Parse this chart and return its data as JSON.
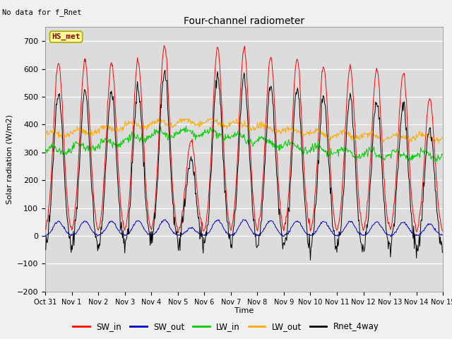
{
  "title": "Four-channel radiometer",
  "subtitle": "No data for f_Rnet",
  "ylabel": "Solar radiation (W/m2)",
  "xlabel": "Time",
  "station_label": "HS_met",
  "ylim": [
    -200,
    750
  ],
  "yticks": [
    -200,
    -100,
    0,
    100,
    200,
    300,
    400,
    500,
    600,
    700
  ],
  "xtick_labels": [
    "Oct 31",
    "Nov 1",
    "Nov 2",
    "Nov 3",
    "Nov 4",
    "Nov 5",
    "Nov 6",
    "Nov 7",
    "Nov 8",
    "Nov 9",
    "Nov 10",
    "Nov 11",
    "Nov 12",
    "Nov 13",
    "Nov 14",
    "Nov 15"
  ],
  "colors": {
    "SW_in": "#ff0000",
    "SW_out": "#0000cc",
    "LW_in": "#00cc00",
    "LW_out": "#ffaa00",
    "Rnet_4way": "#000000"
  },
  "legend_entries": [
    "SW_in",
    "SW_out",
    "LW_in",
    "LW_out",
    "Rnet_4way"
  ],
  "fig_bg_color": "#f0f0f0",
  "plot_bg_color": "#dcdcdc",
  "grid_color": "#ffffff"
}
